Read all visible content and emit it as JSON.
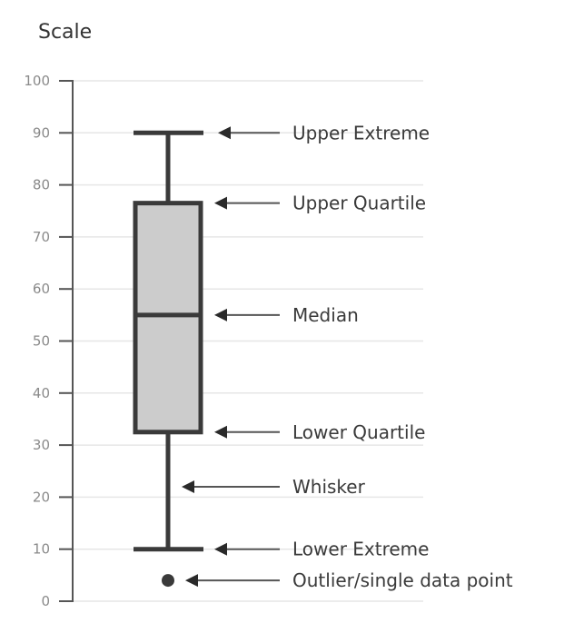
{
  "chart_data": {
    "type": "box",
    "title": "Scale",
    "xlabel": "",
    "ylabel": "Scale",
    "ylim": [
      0,
      100
    ],
    "yticks": [
      0,
      10,
      20,
      30,
      40,
      50,
      60,
      70,
      80,
      90,
      100
    ],
    "grid": true,
    "box": {
      "upper_extreme": 90,
      "upper_quartile": 76.5,
      "median": 55,
      "lower_quartile": 32.5,
      "lower_extreme": 10,
      "outliers": [
        4
      ]
    },
    "annotations": [
      {
        "label": "Upper Extreme",
        "value": 90
      },
      {
        "label": "Upper Quartile",
        "value": 76.5
      },
      {
        "label": "Median",
        "value": 55
      },
      {
        "label": "Lower Quartile",
        "value": 32.5
      },
      {
        "label": "Whisker",
        "value": 22
      },
      {
        "label": "Lower Extreme",
        "value": 10
      },
      {
        "label": "Outlier/single data point",
        "value": 4
      }
    ]
  },
  "colors": {
    "box_fill": "#cccccc",
    "box_stroke": "#3a3a3a",
    "axis": "#555555",
    "grid": "#e6e6e6",
    "tick_text": "#8a8a8a",
    "label_text": "#3a3a3a",
    "arrow": "#2a2a2a"
  }
}
